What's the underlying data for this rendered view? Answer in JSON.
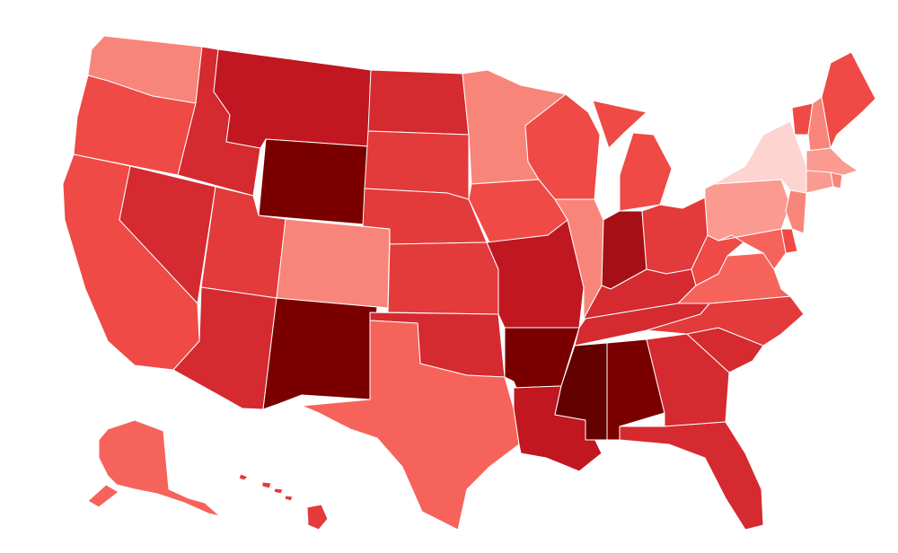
{
  "palette": {
    "c1": "#fdd4d0",
    "c2": "#fb9a90",
    "c3": "#f8857a",
    "c4": "#f6635a",
    "c5": "#ef4a45",
    "c6": "#e33a3b",
    "c7": "#d42a30",
    "c8": "#c01721",
    "c9": "#a50f15",
    "c10": "#7a0000",
    "c11": "#630000"
  },
  "map": {
    "type": "choropleth",
    "region": "United States",
    "legend": false,
    "states": [
      {
        "id": "WA",
        "level": "c3"
      },
      {
        "id": "OR",
        "level": "c5"
      },
      {
        "id": "CA",
        "level": "c5"
      },
      {
        "id": "ID",
        "level": "c7"
      },
      {
        "id": "NV",
        "level": "c7"
      },
      {
        "id": "MT",
        "level": "c8"
      },
      {
        "id": "WY",
        "level": "c10"
      },
      {
        "id": "UT",
        "level": "c6"
      },
      {
        "id": "AZ",
        "level": "c7"
      },
      {
        "id": "CO",
        "level": "c3"
      },
      {
        "id": "NM",
        "level": "c10"
      },
      {
        "id": "ND",
        "level": "c7"
      },
      {
        "id": "SD",
        "level": "c6"
      },
      {
        "id": "NE",
        "level": "c6"
      },
      {
        "id": "KS",
        "level": "c6"
      },
      {
        "id": "OK",
        "level": "c7"
      },
      {
        "id": "TX",
        "level": "c4"
      },
      {
        "id": "MN",
        "level": "c3"
      },
      {
        "id": "IA",
        "level": "c5"
      },
      {
        "id": "MO",
        "level": "c8"
      },
      {
        "id": "AR",
        "level": "c10"
      },
      {
        "id": "LA",
        "level": "c8"
      },
      {
        "id": "WI",
        "level": "c5"
      },
      {
        "id": "IL",
        "level": "c3"
      },
      {
        "id": "MI",
        "level": "c5"
      },
      {
        "id": "IN",
        "level": "c9"
      },
      {
        "id": "OH",
        "level": "c6"
      },
      {
        "id": "KY",
        "level": "c7"
      },
      {
        "id": "TN",
        "level": "c7"
      },
      {
        "id": "MS",
        "level": "c11"
      },
      {
        "id": "AL",
        "level": "c10"
      },
      {
        "id": "GA",
        "level": "c7"
      },
      {
        "id": "FL",
        "level": "c7"
      },
      {
        "id": "SC",
        "level": "c7"
      },
      {
        "id": "NC",
        "level": "c6"
      },
      {
        "id": "VA",
        "level": "c4"
      },
      {
        "id": "WV",
        "level": "c5"
      },
      {
        "id": "PA",
        "level": "c2"
      },
      {
        "id": "NY",
        "level": "c1"
      },
      {
        "id": "NJ",
        "level": "c3"
      },
      {
        "id": "DE",
        "level": "c5"
      },
      {
        "id": "MD",
        "level": "c4"
      },
      {
        "id": "VT",
        "level": "c5"
      },
      {
        "id": "NH",
        "level": "c3"
      },
      {
        "id": "ME",
        "level": "c5"
      },
      {
        "id": "MA",
        "level": "c2"
      },
      {
        "id": "CT",
        "level": "c2"
      },
      {
        "id": "RI",
        "level": "c3"
      },
      {
        "id": "AK",
        "level": "c4"
      },
      {
        "id": "HI",
        "level": "c6"
      }
    ]
  }
}
